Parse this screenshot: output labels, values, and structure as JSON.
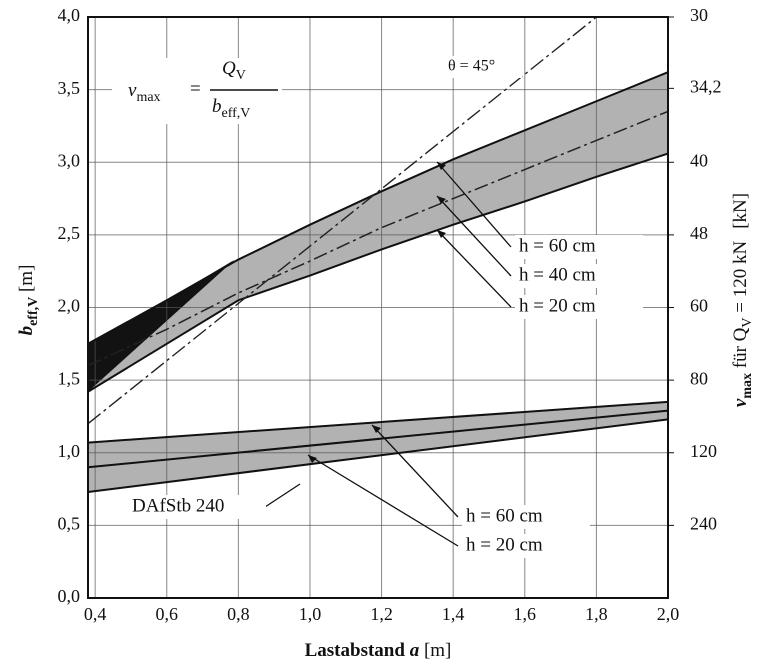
{
  "chart_data": {
    "type": "line",
    "xlabel": {
      "text": "Lastabstand ",
      "var": "a",
      "unit": " [m]"
    },
    "ylabel": {
      "var": "b",
      "sub": "eff,V",
      "unit": " [m]"
    },
    "y2label": {
      "var": "v",
      "sub": "max",
      "text": " für Q",
      "sub2": "V",
      "eq": " = ",
      "load": 120,
      "unit": " kN",
      "bracket": "[kN]"
    },
    "formula": {
      "lhs": "v",
      "lhs_sub": "max",
      "eq": "=",
      "num": "Q",
      "num_sub": "V",
      "den": "b",
      "den_sub": "eff,V"
    },
    "xlim": [
      0.38,
      2.0
    ],
    "ylim": [
      0,
      4
    ],
    "xticks": [
      {
        "value": 0.4,
        "label": "0,4"
      },
      {
        "value": 0.6,
        "label": "0,6"
      },
      {
        "value": 0.8,
        "label": "0,8"
      },
      {
        "value": 1.0,
        "label": "1,0"
      },
      {
        "value": 1.2,
        "label": "1,2"
      },
      {
        "value": 1.4,
        "label": "1,4"
      },
      {
        "value": 1.6,
        "label": "1,6"
      },
      {
        "value": 1.8,
        "label": "1,8"
      },
      {
        "value": 2.0,
        "label": "2,0"
      }
    ],
    "yticks": [
      {
        "value": 0,
        "label": "0,0"
      },
      {
        "value": 0.5,
        "label": "0,5"
      },
      {
        "value": 1.0,
        "label": "1,0"
      },
      {
        "value": 1.5,
        "label": "1,5"
      },
      {
        "value": 2.0,
        "label": "2,0"
      },
      {
        "value": 2.5,
        "label": "2,5"
      },
      {
        "value": 3.0,
        "label": "3,0"
      },
      {
        "value": 3.5,
        "label": "3,5"
      },
      {
        "value": 4.0,
        "label": "4,0"
      }
    ],
    "y2ticks": [
      30,
      {
        "value": 34.2,
        "label": "34,2"
      },
      40,
      48,
      60,
      80,
      120,
      240
    ],
    "y2scale": "reciprocal",
    "grid": true,
    "band_color": "#b2b2b2",
    "overlap_color": "#121212",
    "series": [
      {
        "name": "h = 60 cm",
        "color": "#111",
        "style": "solid",
        "x": [
          0.38,
          0.6,
          0.8,
          1.0,
          1.2,
          1.4,
          1.6,
          1.8,
          2.0
        ],
        "values": [
          1.75,
          2.05,
          2.33,
          2.57,
          2.8,
          3.02,
          3.22,
          3.42,
          3.62
        ]
      },
      {
        "name": "h = 40 cm",
        "color": "#222",
        "style": "dashed",
        "x": [
          0.38,
          0.6,
          0.8,
          1.0,
          1.2,
          1.4,
          1.6,
          1.8,
          2.0
        ],
        "values": [
          1.6,
          1.85,
          2.1,
          2.32,
          2.55,
          2.75,
          2.95,
          3.15,
          3.35
        ]
      },
      {
        "name": "h = 20 cm",
        "color": "#111",
        "style": "solid",
        "x": [
          0.38,
          0.6,
          0.8,
          1.0,
          1.2,
          1.4,
          1.6,
          1.8,
          2.0
        ],
        "values": [
          1.42,
          1.75,
          2.05,
          2.22,
          2.4,
          2.57,
          2.73,
          2.9,
          3.06
        ]
      },
      {
        "name": "h = 60 cm",
        "color": "#111",
        "style": "solid",
        "x": [
          0.38,
          2.0
        ],
        "values": [
          1.07,
          1.35
        ]
      },
      {
        "name": null,
        "color": "#111",
        "style": "solid",
        "x": [
          0.38,
          2.0
        ],
        "values": [
          0.9,
          1.29
        ]
      },
      {
        "name": "h = 20 cm",
        "color": "#111",
        "style": "solid",
        "x": [
          0.38,
          2.0
        ],
        "values": [
          0.73,
          1.23
        ]
      }
    ],
    "overlap": {
      "x": [
        0.38,
        0.79
      ],
      "values": [
        1.42,
        2.33
      ]
    },
    "theta_line": {
      "label": "θ = 45°",
      "x": [
        0.38,
        1.8
      ],
      "values": [
        1.2,
        4.0
      ]
    },
    "band_label": "DAfStb 240"
  }
}
